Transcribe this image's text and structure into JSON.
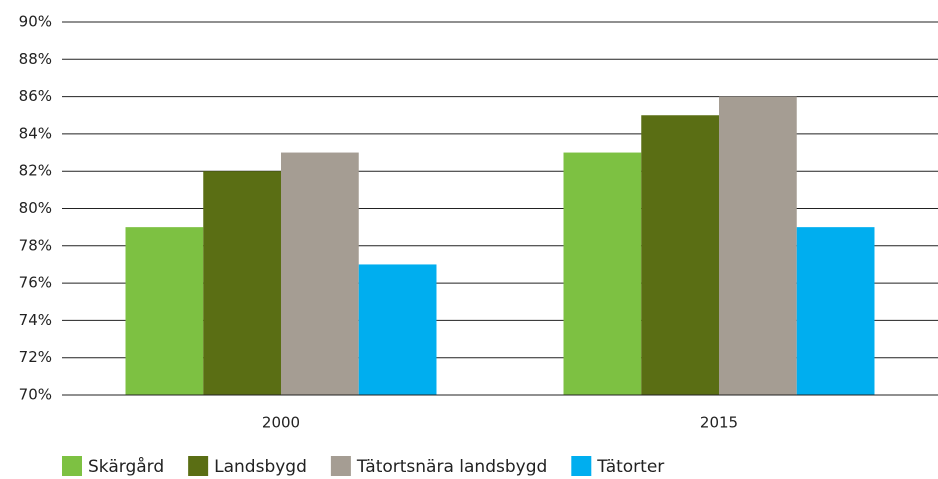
{
  "chart_data": {
    "type": "bar",
    "categories": [
      "2000",
      "2015"
    ],
    "series": [
      {
        "name": "Skärgård",
        "color": "#7dc142",
        "values": [
          79,
          83
        ]
      },
      {
        "name": "Landsbygd",
        "color": "#5a6e14",
        "values": [
          82,
          85
        ]
      },
      {
        "name": "Tätortsnära landsbygd",
        "color": "#a59d93",
        "values": [
          83,
          86
        ]
      },
      {
        "name": "Tätorter",
        "color": "#00aeef",
        "values": [
          77,
          79
        ]
      }
    ],
    "ylim": [
      70,
      90
    ],
    "yticks": [
      {
        "value": 70,
        "label": "70%"
      },
      {
        "value": 72,
        "label": "72%"
      },
      {
        "value": 74,
        "label": "74%"
      },
      {
        "value": 76,
        "label": "76%"
      },
      {
        "value": 78,
        "label": "78%"
      },
      {
        "value": 80,
        "label": "80%"
      },
      {
        "value": 82,
        "label": "82%"
      },
      {
        "value": 84,
        "label": "84%"
      },
      {
        "value": 86,
        "label": "86%"
      },
      {
        "value": 88,
        "label": "88%"
      },
      {
        "value": 90,
        "label": "90%"
      }
    ],
    "grid": true,
    "legend": "bottom"
  }
}
